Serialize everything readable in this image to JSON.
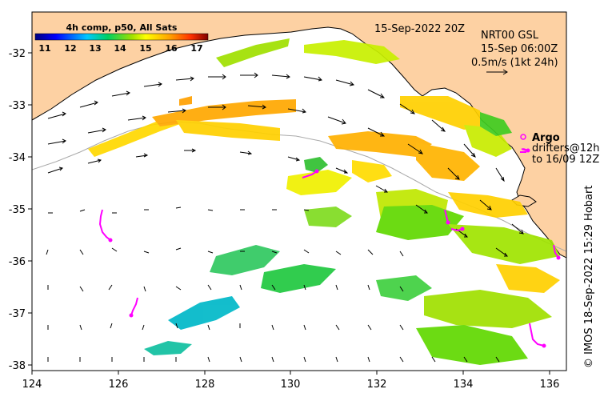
{
  "map": {
    "title_date": "15-Sep-2022 20Z",
    "product": "NRT00 GSL",
    "valid_time": "15-Sep 06:00Z",
    "scale_arrow_label": "0.5m/s (1kt 24h)",
    "credit": "© IMOS 18-Sep-2022 15:29 Hobart",
    "colorbar": {
      "title": "4h comp, p50, All Sats",
      "ticks": [
        "11",
        "12",
        "13",
        "14",
        "15",
        "16",
        "17"
      ],
      "min": 10.5,
      "max": 17.5
    },
    "legend": {
      "argo_label": "Argo",
      "drifters_label": "drifters@12h",
      "drifters_to_label": "to 16/09 12Z"
    },
    "x_ticks": [
      "124",
      "126",
      "128",
      "130",
      "132",
      "134",
      "136"
    ],
    "y_ticks": [
      "-32",
      "-33",
      "-34",
      "-35",
      "-36",
      "-37",
      "-38"
    ],
    "lon_range": [
      124,
      136.4
    ],
    "lat_range": [
      -38.1,
      -31.2
    ],
    "colors": {
      "land": "#fdd1a3",
      "ocean": "#ffffff",
      "argo": "#ff00ff",
      "shelf": "#aaaaaa"
    }
  }
}
